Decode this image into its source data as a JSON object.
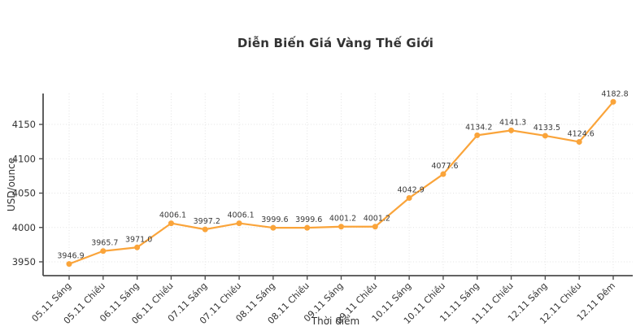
{
  "page": {
    "background_color": "#ffffff"
  },
  "chart_data": {
    "type": "line",
    "title": "Diễn Biến Giá Vàng Thế Giới",
    "xlabel": "Thời điểm",
    "ylabel": "USD/ounce",
    "categories": [
      "05.11 Sáng",
      "05.11 Chiều",
      "06.11 Sáng",
      "06.11 Chiều",
      "07.11 Sáng",
      "07.11 Chiều",
      "08.11 Sáng",
      "08.11 Chiều",
      "09.11 Sáng",
      "09.11 Chiều",
      "10.11 Sáng",
      "10.11 Chiều",
      "11.11 Sáng",
      "11.11 Chiều",
      "12.11 Sáng",
      "12.11 Chiều",
      "12.11 Đêm"
    ],
    "values": [
      3946.9,
      3965.7,
      3971.0,
      4006.1,
      3997.2,
      4006.1,
      3999.6,
      3999.6,
      4001.2,
      4001.2,
      4042.9,
      4077.6,
      4134.2,
      4141.3,
      4133.5,
      4124.6,
      4182.8
    ],
    "value_labels": [
      "3946.9",
      "3965.7",
      "3971.0",
      "4006.1",
      "3997.2",
      "4006.1",
      "3999.6",
      "3999.6",
      "4001.2",
      "4001.2",
      "4042.9",
      "4077.6",
      "4134.2",
      "4141.3",
      "4133.5",
      "4124.6",
      "4182.8"
    ],
    "yticks": [
      3950,
      4000,
      4050,
      4100,
      4150
    ],
    "ylim": [
      3930,
      4193
    ],
    "grid": true,
    "grid_style": "dotted",
    "legend_position": "none",
    "marker": "circle",
    "x_tick_rotation_deg": 45,
    "style": {
      "line_color": "#FAA43A",
      "marker_color": "#FAA43A",
      "grid_color": "#e3e3e3",
      "axis_color": "#4d4d4d",
      "tick_label_color": "#333333",
      "value_label_color": "#3a3a3a",
      "title_color": "#333333"
    }
  }
}
